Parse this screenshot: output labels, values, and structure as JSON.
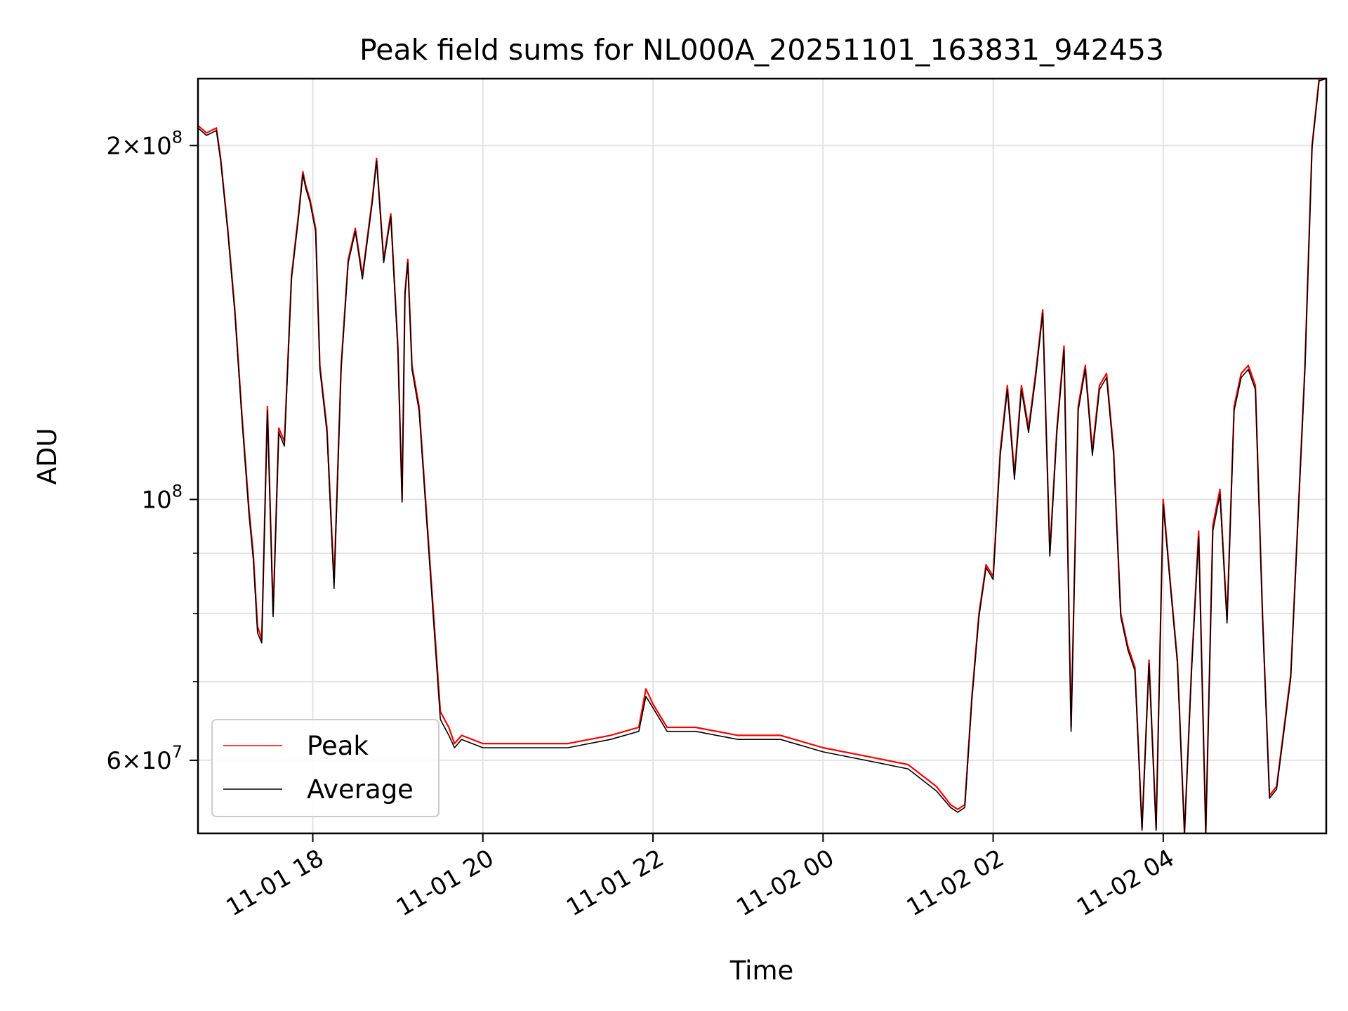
{
  "chart_data": {
    "type": "line",
    "title": "Peak field sums for NL000A_20251101_163831_942453",
    "xlabel": "Time",
    "ylabel": "ADU",
    "yscale": "log",
    "ylim": [
      52000000,
      228000000
    ],
    "xlim": [
      "2025-11-01 16:39",
      "2025-11-02 05:55"
    ],
    "grid": true,
    "legend_position": "lower-left",
    "x_ticks": [
      {
        "value": "2025-11-01 18:00",
        "label": "11-01 18"
      },
      {
        "value": "2025-11-01 20:00",
        "label": "11-01 20"
      },
      {
        "value": "2025-11-01 22:00",
        "label": "11-01 22"
      },
      {
        "value": "2025-11-02 00:00",
        "label": "11-02 00"
      },
      {
        "value": "2025-11-02 02:00",
        "label": "11-02 02"
      },
      {
        "value": "2025-11-02 04:00",
        "label": "11-02 04"
      }
    ],
    "y_major_ticks": [
      {
        "value": 60000000,
        "mantissa": "6",
        "exponent": "7"
      },
      {
        "value": 100000000,
        "mantissa": "",
        "exponent": "8"
      },
      {
        "value": 200000000,
        "mantissa": "2",
        "exponent": "8"
      }
    ],
    "y_minor_grid": [
      70000000,
      80000000,
      90000000
    ],
    "series": [
      {
        "name": "Peak",
        "color": "#ff0000",
        "x": [
          "2025-11-01 16:39",
          "2025-11-01 16:45",
          "2025-11-01 16:52",
          "2025-11-01 16:55",
          "2025-11-01 17:00",
          "2025-11-01 17:05",
          "2025-11-01 17:10",
          "2025-11-01 17:15",
          "2025-11-01 17:18",
          "2025-11-01 17:21",
          "2025-11-01 17:24",
          "2025-11-01 17:28",
          "2025-11-01 17:32",
          "2025-11-01 17:36",
          "2025-11-01 17:40",
          "2025-11-01 17:45",
          "2025-11-01 17:50",
          "2025-11-01 17:53",
          "2025-11-01 17:55",
          "2025-11-01 17:58",
          "2025-11-01 18:02",
          "2025-11-01 18:05",
          "2025-11-01 18:10",
          "2025-11-01 18:15",
          "2025-11-01 18:20",
          "2025-11-01 18:25",
          "2025-11-01 18:30",
          "2025-11-01 18:35",
          "2025-11-01 18:42",
          "2025-11-01 18:45",
          "2025-11-01 18:50",
          "2025-11-01 18:55",
          "2025-11-01 19:00",
          "2025-11-01 19:03",
          "2025-11-01 19:05",
          "2025-11-01 19:07",
          "2025-11-01 19:10",
          "2025-11-01 19:15",
          "2025-11-01 19:30",
          "2025-11-01 19:36",
          "2025-11-01 19:40",
          "2025-11-01 19:45",
          "2025-11-01 20:00",
          "2025-11-01 20:30",
          "2025-11-01 21:00",
          "2025-11-01 21:30",
          "2025-11-01 21:50",
          "2025-11-01 21:55",
          "2025-11-01 22:00",
          "2025-11-01 22:10",
          "2025-11-01 22:30",
          "2025-11-01 23:00",
          "2025-11-01 23:30",
          "2025-11-02 00:00",
          "2025-11-02 00:30",
          "2025-11-02 01:00",
          "2025-11-02 01:20",
          "2025-11-02 01:30",
          "2025-11-02 01:35",
          "2025-11-02 01:40",
          "2025-11-02 01:45",
          "2025-11-02 01:50",
          "2025-11-02 01:55",
          "2025-11-02 02:00",
          "2025-11-02 02:05",
          "2025-11-02 02:10",
          "2025-11-02 02:15",
          "2025-11-02 02:20",
          "2025-11-02 02:25",
          "2025-11-02 02:30",
          "2025-11-02 02:35",
          "2025-11-02 02:40",
          "2025-11-02 02:45",
          "2025-11-02 02:50",
          "2025-11-02 02:55",
          "2025-11-02 03:00",
          "2025-11-02 03:05",
          "2025-11-02 03:10",
          "2025-11-02 03:15",
          "2025-11-02 03:20",
          "2025-11-02 03:25",
          "2025-11-02 03:30",
          "2025-11-02 03:35",
          "2025-11-02 03:40",
          "2025-11-02 03:45",
          "2025-11-02 03:50",
          "2025-11-02 03:55",
          "2025-11-02 04:00",
          "2025-11-02 04:05",
          "2025-11-02 04:10",
          "2025-11-02 04:15",
          "2025-11-02 04:20",
          "2025-11-02 04:25",
          "2025-11-02 04:30",
          "2025-11-02 04:35",
          "2025-11-02 04:40",
          "2025-11-02 04:45",
          "2025-11-02 04:50",
          "2025-11-02 04:55",
          "2025-11-02 05:00",
          "2025-11-02 05:05",
          "2025-11-02 05:10",
          "2025-11-02 05:15",
          "2025-11-02 05:20",
          "2025-11-02 05:30",
          "2025-11-02 05:40",
          "2025-11-02 05:45",
          "2025-11-02 05:50",
          "2025-11-02 05:55"
        ],
        "values": [
          208000000,
          205000000,
          207000000,
          195000000,
          170000000,
          145000000,
          118000000,
          98000000,
          90000000,
          78000000,
          76000000,
          120000000,
          80000000,
          115000000,
          112000000,
          155000000,
          175000000,
          190000000,
          185000000,
          180000000,
          170000000,
          130000000,
          115000000,
          85000000,
          130000000,
          160000000,
          170000000,
          155000000,
          180000000,
          195000000,
          160000000,
          175000000,
          135000000,
          100000000,
          150000000,
          160000000,
          130000000,
          120000000,
          66000000,
          64000000,
          62000000,
          63000000,
          62000000,
          62000000,
          62000000,
          63000000,
          64000000,
          69000000,
          67000000,
          64000000,
          64000000,
          63000000,
          63000000,
          61500000,
          60500000,
          59500000,
          57000000,
          55000000,
          54500000,
          55000000,
          68000000,
          80000000,
          88000000,
          86000000,
          110000000,
          125000000,
          105000000,
          125000000,
          115000000,
          128000000,
          145000000,
          90000000,
          115000000,
          135000000,
          64000000,
          120000000,
          130000000,
          110000000,
          125000000,
          128000000,
          110000000,
          80000000,
          75000000,
          72000000,
          52500000,
          73000000,
          52500000,
          100000000,
          85000000,
          73000000,
          52000000,
          72000000,
          94000000,
          52000000,
          95000000,
          102000000,
          79000000,
          120000000,
          128000000,
          130000000,
          125000000,
          80000000,
          56000000,
          57000000,
          71000000,
          130000000,
          200000000,
          228000000,
          230000000
        ]
      },
      {
        "name": "Average",
        "color": "#000000",
        "x": [
          "2025-11-01 16:39",
          "2025-11-01 16:45",
          "2025-11-01 16:52",
          "2025-11-01 16:55",
          "2025-11-01 17:00",
          "2025-11-01 17:05",
          "2025-11-01 17:10",
          "2025-11-01 17:15",
          "2025-11-01 17:18",
          "2025-11-01 17:21",
          "2025-11-01 17:24",
          "2025-11-01 17:28",
          "2025-11-01 17:32",
          "2025-11-01 17:36",
          "2025-11-01 17:40",
          "2025-11-01 17:45",
          "2025-11-01 17:50",
          "2025-11-01 17:53",
          "2025-11-01 17:55",
          "2025-11-01 17:58",
          "2025-11-01 18:02",
          "2025-11-01 18:05",
          "2025-11-01 18:10",
          "2025-11-01 18:15",
          "2025-11-01 18:20",
          "2025-11-01 18:25",
          "2025-11-01 18:30",
          "2025-11-01 18:35",
          "2025-11-01 18:42",
          "2025-11-01 18:45",
          "2025-11-01 18:50",
          "2025-11-01 18:55",
          "2025-11-01 19:00",
          "2025-11-01 19:03",
          "2025-11-01 19:05",
          "2025-11-01 19:07",
          "2025-11-01 19:10",
          "2025-11-01 19:15",
          "2025-11-01 19:30",
          "2025-11-01 19:36",
          "2025-11-01 19:40",
          "2025-11-01 19:45",
          "2025-11-01 20:00",
          "2025-11-01 20:30",
          "2025-11-01 21:00",
          "2025-11-01 21:30",
          "2025-11-01 21:50",
          "2025-11-01 21:55",
          "2025-11-01 22:00",
          "2025-11-01 22:10",
          "2025-11-01 22:30",
          "2025-11-01 23:00",
          "2025-11-01 23:30",
          "2025-11-02 00:00",
          "2025-11-02 00:30",
          "2025-11-02 01:00",
          "2025-11-02 01:20",
          "2025-11-02 01:30",
          "2025-11-02 01:35",
          "2025-11-02 01:40",
          "2025-11-02 01:45",
          "2025-11-02 01:50",
          "2025-11-02 01:55",
          "2025-11-02 02:00",
          "2025-11-02 02:05",
          "2025-11-02 02:10",
          "2025-11-02 02:15",
          "2025-11-02 02:20",
          "2025-11-02 02:25",
          "2025-11-02 02:30",
          "2025-11-02 02:35",
          "2025-11-02 02:40",
          "2025-11-02 02:45",
          "2025-11-02 02:50",
          "2025-11-02 02:55",
          "2025-11-02 03:00",
          "2025-11-02 03:05",
          "2025-11-02 03:10",
          "2025-11-02 03:15",
          "2025-11-02 03:20",
          "2025-11-02 03:25",
          "2025-11-02 03:30",
          "2025-11-02 03:35",
          "2025-11-02 03:40",
          "2025-11-02 03:45",
          "2025-11-02 03:50",
          "2025-11-02 03:55",
          "2025-11-02 04:00",
          "2025-11-02 04:05",
          "2025-11-02 04:10",
          "2025-11-02 04:15",
          "2025-11-02 04:20",
          "2025-11-02 04:25",
          "2025-11-02 04:30",
          "2025-11-02 04:35",
          "2025-11-02 04:40",
          "2025-11-02 04:45",
          "2025-11-02 04:50",
          "2025-11-02 04:55",
          "2025-11-02 05:00",
          "2025-11-02 05:05",
          "2025-11-02 05:10",
          "2025-11-02 05:15",
          "2025-11-02 05:20",
          "2025-11-02 05:30",
          "2025-11-02 05:40",
          "2025-11-02 05:45",
          "2025-11-02 05:50",
          "2025-11-02 05:55"
        ],
        "values": [
          207000000,
          204000000,
          206000000,
          194000000,
          169000000,
          144000000,
          117000000,
          97000000,
          89000000,
          77000000,
          75500000,
          119000000,
          79500000,
          114000000,
          111000000,
          154000000,
          174000000,
          189000000,
          184000000,
          179000000,
          169000000,
          129000000,
          114000000,
          84000000,
          129000000,
          159000000,
          169000000,
          154000000,
          179000000,
          194000000,
          159000000,
          174000000,
          134000000,
          99500000,
          149000000,
          159000000,
          129000000,
          119000000,
          65000000,
          63000000,
          61500000,
          62500000,
          61500000,
          61500000,
          61500000,
          62500000,
          63500000,
          68000000,
          66500000,
          63500000,
          63500000,
          62500000,
          62500000,
          61000000,
          60000000,
          59000000,
          56500000,
          54700000,
          54200000,
          54700000,
          67500000,
          79500000,
          87500000,
          85500000,
          109000000,
          124000000,
          104000000,
          124000000,
          114000000,
          127000000,
          144000000,
          89500000,
          114000000,
          134000000,
          63500000,
          119000000,
          129000000,
          109000000,
          124000000,
          127000000,
          109000000,
          79500000,
          74500000,
          71500000,
          52300000,
          72500000,
          52300000,
          99000000,
          84500000,
          72500000,
          51800000,
          71500000,
          93000000,
          51800000,
          94000000,
          101000000,
          78500000,
          119000000,
          127000000,
          129000000,
          124000000,
          79500000,
          55700000,
          56700000,
          70500000,
          129000000,
          199000000,
          227000000,
          229000000
        ]
      }
    ]
  }
}
